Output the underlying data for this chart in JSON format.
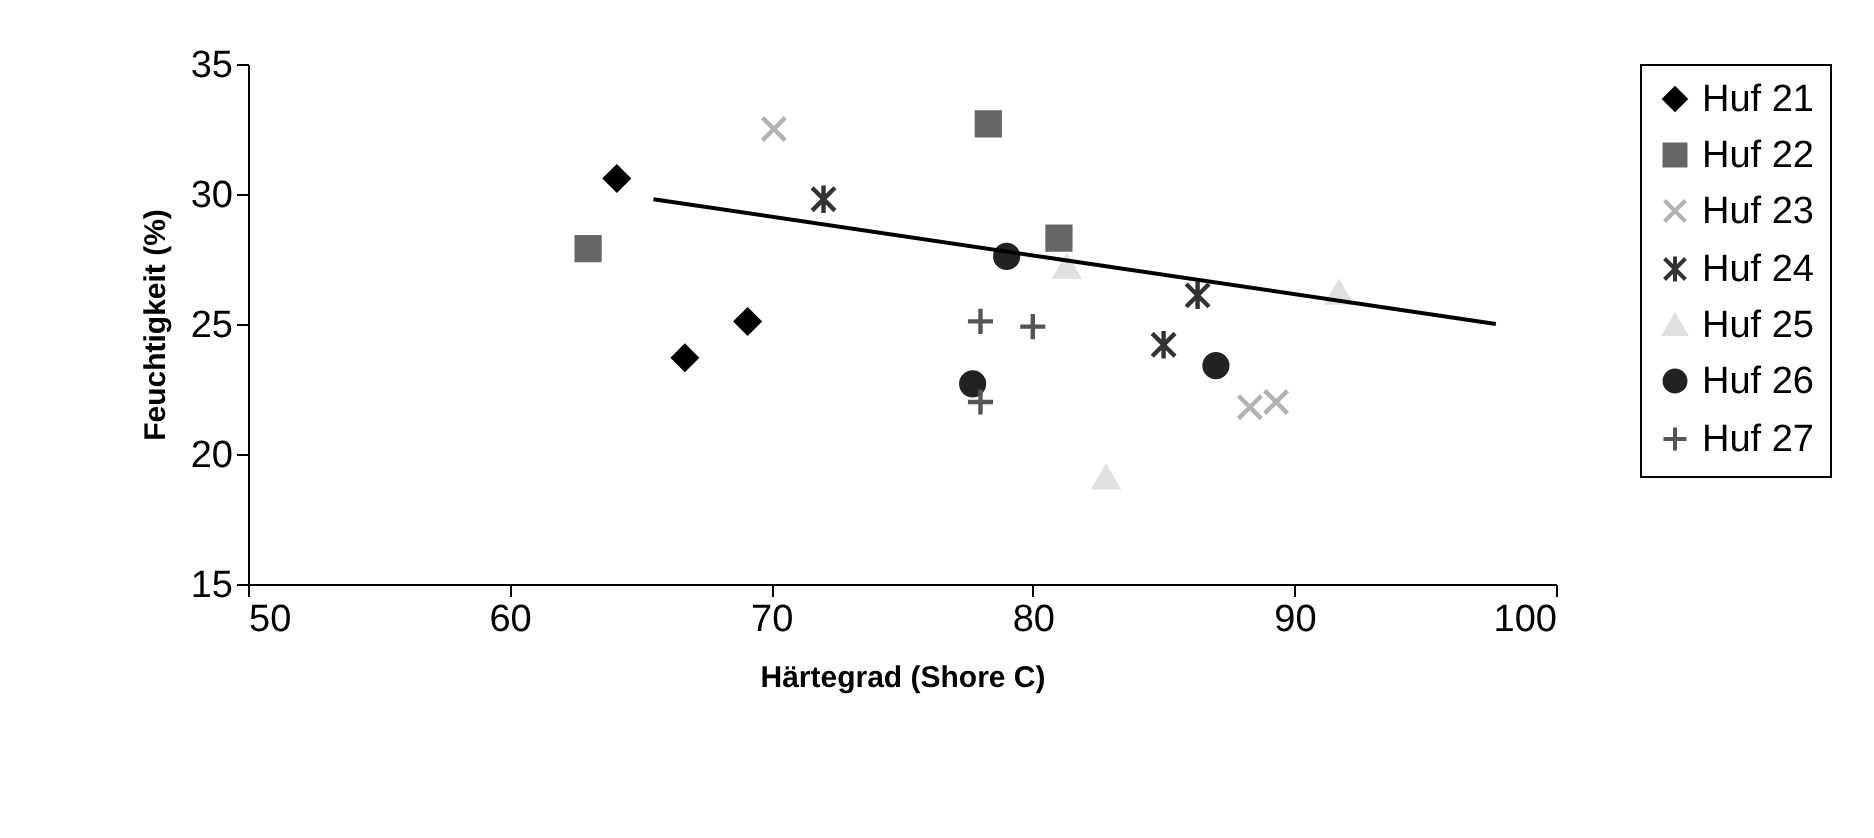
{
  "chart_data": {
    "type": "scatter",
    "xlabel": "Härtegrad (Shore C)",
    "ylabel": "Feuchtigkeit (%)",
    "xlim": [
      50,
      100
    ],
    "xticks": [
      50,
      60,
      70,
      80,
      90,
      100
    ],
    "ylim": [
      15,
      35
    ],
    "yticks": [
      15,
      20,
      25,
      30,
      35
    ],
    "grid": false,
    "legend": "right",
    "series": [
      {
        "name": "Huf 21",
        "color": "#000000",
        "x": [
          64.1,
          66.7,
          69.1
        ],
        "values": [
          30.6,
          23.7,
          25.1
        ]
      },
      {
        "name": "Huf 22",
        "color": "#666666",
        "x": [
          63.0,
          78.3,
          81.0
        ],
        "values": [
          27.9,
          32.7,
          28.3
        ]
      },
      {
        "name": "Huf 23",
        "color": "#b2b2b2",
        "x": [
          70.1,
          88.3,
          89.3
        ],
        "values": [
          32.5,
          21.8,
          22.0
        ]
      },
      {
        "name": "Huf 24",
        "color": "#333333",
        "x": [
          72.0,
          85.0,
          86.3
        ],
        "values": [
          29.8,
          24.2,
          26.1
        ]
      },
      {
        "name": "Huf 25",
        "color": "#e0e0e0",
        "x": [
          81.3,
          82.8,
          91.7
        ],
        "values": [
          27.2,
          19.1,
          26.2
        ]
      },
      {
        "name": "Huf 26",
        "color": "#222222",
        "x": [
          79.0,
          77.7,
          87.0
        ],
        "values": [
          27.6,
          22.7,
          23.4
        ]
      },
      {
        "name": "Huf 27",
        "color": "#555555",
        "x": [
          78.0,
          80.0,
          78.0
        ],
        "values": [
          25.1,
          24.9,
          22.0
        ]
      },
      {
        "type": "line",
        "color": "#000000",
        "line_style": "solid",
        "x": [
          65.5,
          97.7
        ],
        "values": [
          29.8,
          25.0
        ]
      }
    ]
  }
}
